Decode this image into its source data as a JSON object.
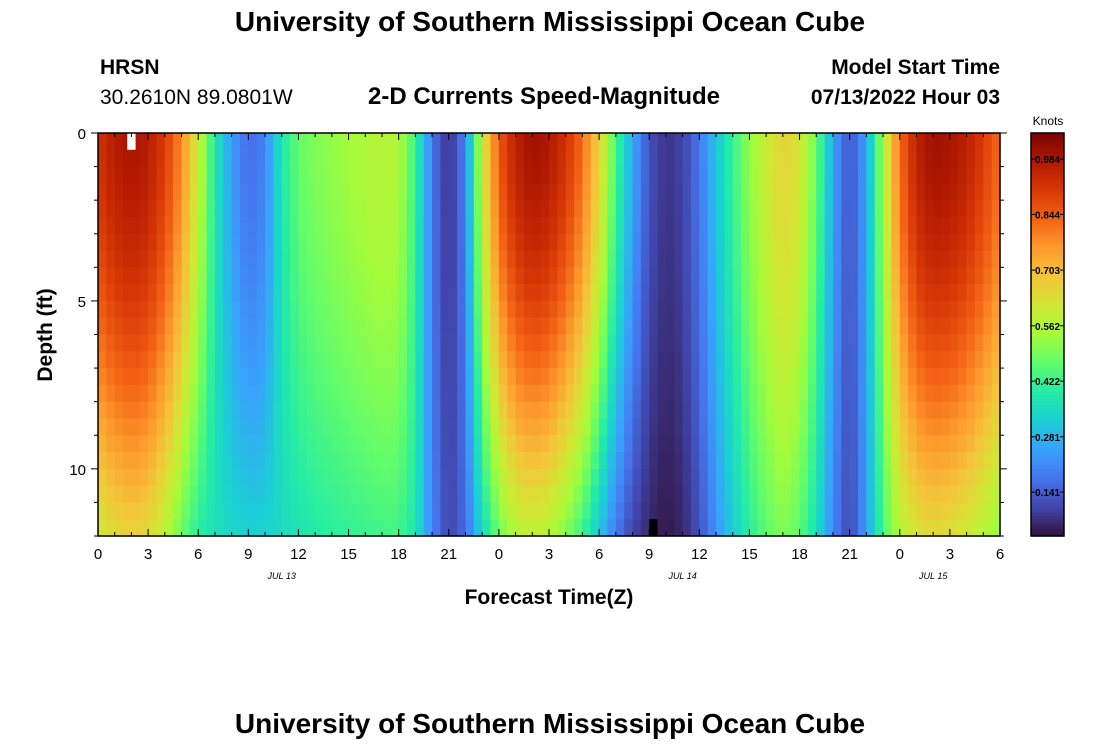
{
  "page": {
    "title": "University of Southern Mississippi Ocean Cube",
    "footer_title": "University of Southern Mississippi Ocean Cube",
    "station": "HRSN",
    "coords": "30.2610N  89.0801W",
    "model_start_label": "Model Start Time",
    "model_start_value": "07/13/2022 Hour 03"
  },
  "chart_data": {
    "type": "heatmap",
    "title": "2-D Currents Speed-Magnitude",
    "xlabel": "Forecast Time(Z)",
    "ylabel": "Depth (ft)",
    "x_tick_labels": [
      "0",
      "3",
      "6",
      "9",
      "12",
      "15",
      "18",
      "21",
      "0",
      "3",
      "6",
      "9",
      "12",
      "15",
      "18",
      "21",
      "0",
      "3",
      "6"
    ],
    "day_labels": [
      {
        "label": "JUL 13",
        "hour": 11
      },
      {
        "label": "JUL 14",
        "hour": 35
      },
      {
        "label": "JUL 15",
        "hour": 50
      }
    ],
    "x_range_hours": [
      0,
      54
    ],
    "y_tick_labels": [
      "0",
      "5",
      "10"
    ],
    "y_range_ft": [
      0,
      12
    ],
    "colorbar": {
      "unit": "Knots",
      "tick_labels": [
        "0.984",
        "0.844",
        "0.703",
        "0.562",
        "0.422",
        "0.281",
        "0.141"
      ],
      "range": [
        0.03,
        1.05
      ],
      "colors": [
        "#30123b",
        "#4145ab",
        "#4675ed",
        "#39a2fc",
        "#1bcfd4",
        "#24eca6",
        "#61fc6c",
        "#a4fc3b",
        "#d1e834",
        "#f3c63a",
        "#fe9b2d",
        "#f36315",
        "#d93806",
        "#b11901",
        "#7a0402"
      ]
    },
    "depth_rows_ft": [
      0.25,
      0.75,
      1.25,
      1.75,
      2.25,
      2.75,
      3.25,
      3.75,
      4.25,
      4.75,
      5.25,
      5.75,
      6.25,
      6.75,
      7.25,
      7.75,
      8.25,
      8.75,
      9.25,
      9.75,
      10.25,
      10.75,
      11.25,
      11.75
    ],
    "speed_profile": {
      "hours": [
        0,
        1,
        2,
        3,
        4,
        5,
        6,
        7,
        8,
        9,
        10,
        11,
        12,
        13,
        14,
        15,
        16,
        17,
        18,
        19,
        20,
        21,
        22,
        23,
        24,
        25,
        26,
        27,
        28,
        29,
        30,
        31,
        32,
        33,
        34,
        35,
        36,
        37,
        38,
        39,
        40,
        41,
        42,
        43,
        44,
        45,
        46,
        47,
        48,
        49,
        50,
        51,
        52,
        53,
        54
      ],
      "surface": [
        0.92,
        0.97,
        0.99,
        0.97,
        0.9,
        0.78,
        0.6,
        0.38,
        0.24,
        0.16,
        0.2,
        0.38,
        0.47,
        0.5,
        0.52,
        0.54,
        0.56,
        0.57,
        0.56,
        0.42,
        0.18,
        0.07,
        0.2,
        0.6,
        0.85,
        0.96,
        1.0,
        0.98,
        0.92,
        0.82,
        0.66,
        0.44,
        0.26,
        0.12,
        0.08,
        0.1,
        0.18,
        0.3,
        0.42,
        0.52,
        0.6,
        0.66,
        0.62,
        0.48,
        0.25,
        0.12,
        0.25,
        0.55,
        0.82,
        0.96,
        1.0,
        0.99,
        0.96,
        0.9,
        0.82
      ],
      "bottom": [
        0.6,
        0.64,
        0.66,
        0.64,
        0.57,
        0.47,
        0.4,
        0.36,
        0.34,
        0.33,
        0.33,
        0.35,
        0.37,
        0.39,
        0.4,
        0.41,
        0.42,
        0.43,
        0.43,
        0.38,
        0.2,
        0.1,
        0.16,
        0.34,
        0.48,
        0.56,
        0.58,
        0.56,
        0.5,
        0.42,
        0.3,
        0.18,
        0.1,
        0.06,
        0.04,
        0.06,
        0.12,
        0.22,
        0.32,
        0.4,
        0.46,
        0.5,
        0.46,
        0.36,
        0.2,
        0.1,
        0.24,
        0.44,
        0.56,
        0.62,
        0.64,
        0.63,
        0.6,
        0.56,
        0.52
      ]
    },
    "missing_cells": [
      {
        "hour_start": 1.75,
        "hour_end": 2.25,
        "depth_start": 0,
        "depth_end": 0.5,
        "color": "#ffffff"
      },
      {
        "hour_start": 33,
        "hour_end": 33.5,
        "depth_start": 11.5,
        "depth_end": 12,
        "color": "#000000"
      }
    ]
  }
}
